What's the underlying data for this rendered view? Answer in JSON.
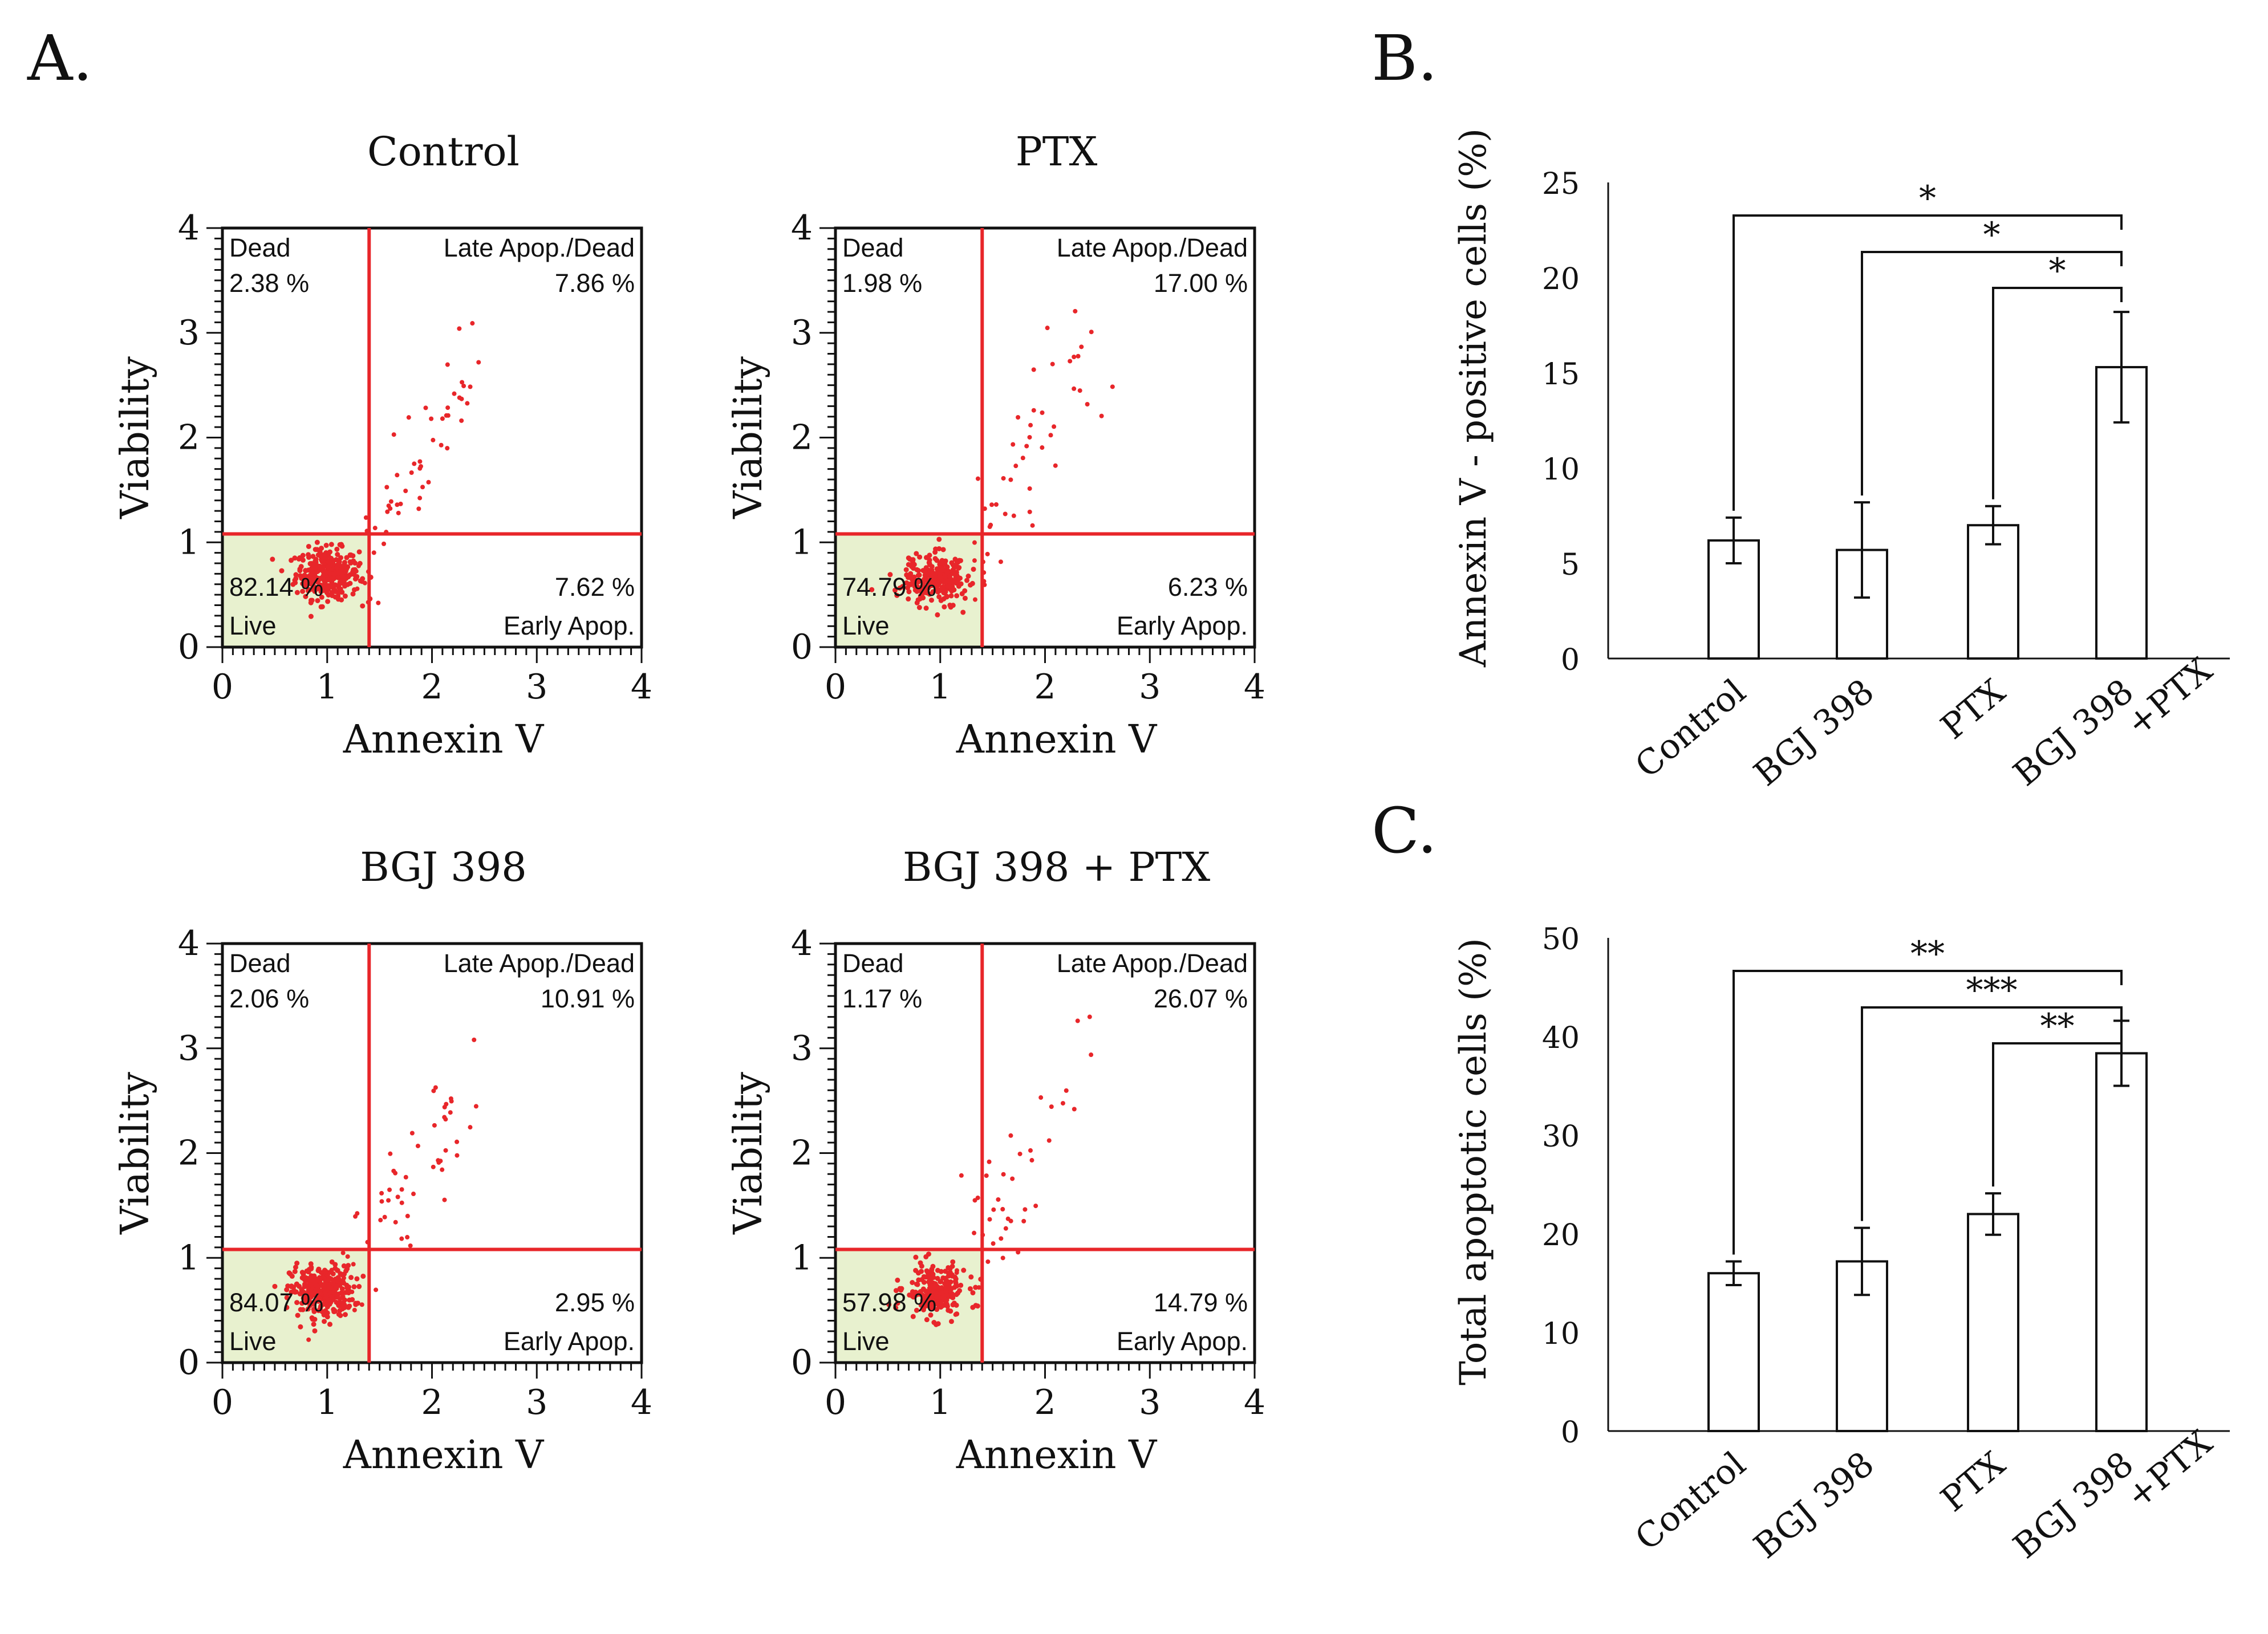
{
  "colors": {
    "red": "#e8262a",
    "live_fill": "#e8f1cf",
    "ink": "#111111",
    "dot": "#e8262a"
  },
  "panel_labels": {
    "a": "A.",
    "b": "B.",
    "c": "C."
  },
  "chart_data": [
    {
      "type": "scatter",
      "title": "Control",
      "xlabel": "Annexin V",
      "ylabel": "Viability",
      "xlim": [
        0,
        4
      ],
      "ylim": [
        0,
        4
      ],
      "xticks": [
        "0",
        "1",
        "2",
        "3",
        "4"
      ],
      "yticks": [
        "0",
        "1",
        "2",
        "3",
        "4"
      ],
      "gates": {
        "x": 1.4,
        "y": 1.08
      },
      "quadrants": {
        "dead": {
          "label": "Dead",
          "value": "2.38 %"
        },
        "late": {
          "label": "Late Apop./Dead",
          "value": "7.86 %"
        },
        "live": {
          "label": "Live",
          "value": "82.14 %"
        },
        "early": {
          "label": "Early Apop.",
          "value": "7.62 %"
        }
      },
      "population": {
        "live_center": [
          1.0,
          0.7
        ],
        "live_count": 320,
        "spread": [
          1.45,
          2.7
        ]
      }
    },
    {
      "type": "scatter",
      "title": "PTX",
      "xlabel": "Annexin V",
      "ylabel": "Viability",
      "xlim": [
        0,
        4
      ],
      "ylim": [
        0,
        4
      ],
      "xticks": [
        "0",
        "1",
        "2",
        "3",
        "4"
      ],
      "yticks": [
        "0",
        "1",
        "2",
        "3",
        "4"
      ],
      "gates": {
        "x": 1.4,
        "y": 1.08
      },
      "quadrants": {
        "dead": {
          "label": "Dead",
          "value": "1.98 %"
        },
        "late": {
          "label": "Late Apop./Dead",
          "value": "17.00 %"
        },
        "live": {
          "label": "Live",
          "value": "74.79 %"
        },
        "early": {
          "label": "Early Apop.",
          "value": "6.23 %"
        }
      },
      "population": {
        "live_center": [
          0.95,
          0.65
        ],
        "live_count": 280,
        "spread": [
          1.5,
          3.0
        ]
      }
    },
    {
      "type": "scatter",
      "title": "BGJ 398",
      "xlabel": "Annexin V",
      "ylabel": "Viability",
      "xlim": [
        0,
        4
      ],
      "ylim": [
        0,
        4
      ],
      "xticks": [
        "0",
        "1",
        "2",
        "3",
        "4"
      ],
      "yticks": [
        "0",
        "1",
        "2",
        "3",
        "4"
      ],
      "gates": {
        "x": 1.4,
        "y": 1.08
      },
      "quadrants": {
        "dead": {
          "label": "Dead",
          "value": "2.06 %"
        },
        "late": {
          "label": "Late Apop./Dead",
          "value": "10.91 %"
        },
        "live": {
          "label": "Live",
          "value": "84.07 %"
        },
        "early": {
          "label": "Early Apop.",
          "value": "2.95 %"
        }
      },
      "population": {
        "live_center": [
          0.95,
          0.68
        ],
        "live_count": 320,
        "spread": [
          1.4,
          2.9
        ]
      }
    },
    {
      "type": "scatter",
      "title": "BGJ 398 + PTX",
      "xlabel": "Annexin V",
      "ylabel": "Viability",
      "xlim": [
        0,
        4
      ],
      "ylim": [
        0,
        4
      ],
      "xticks": [
        "0",
        "1",
        "2",
        "3",
        "4"
      ],
      "yticks": [
        "0",
        "1",
        "2",
        "3",
        "4"
      ],
      "gates": {
        "x": 1.4,
        "y": 1.08
      },
      "quadrants": {
        "dead": {
          "label": "Dead",
          "value": "1.17 %"
        },
        "late": {
          "label": "Late Apop./Dead",
          "value": "26.07 %"
        },
        "live": {
          "label": "Live",
          "value": "57.98 %"
        },
        "early": {
          "label": "Early Apop.",
          "value": "14.79 %"
        }
      },
      "population": {
        "live_center": [
          0.95,
          0.68
        ],
        "live_count": 230,
        "spread": [
          1.5,
          3.1
        ]
      }
    },
    {
      "type": "bar",
      "panel": "B.",
      "ylabel": "Annexin V - positive cells (%)",
      "ylim": [
        0,
        25
      ],
      "yticks": [
        0,
        5,
        10,
        15,
        20,
        25
      ],
      "categories": [
        "Control",
        "BGJ 398",
        "PTX",
        "BGJ 398 +PTX"
      ],
      "category_lines": [
        [
          "Control"
        ],
        [
          "BGJ 398"
        ],
        [
          "PTX"
        ],
        [
          "BGJ 398",
          "+PTX"
        ]
      ],
      "values": [
        6.2,
        5.7,
        7.0,
        15.3
      ],
      "errors": [
        1.2,
        2.5,
        1.0,
        2.9
      ],
      "significance": [
        {
          "from": 0,
          "to": 3,
          "label": "*"
        },
        {
          "from": 1,
          "to": 3,
          "label": "*"
        },
        {
          "from": 2,
          "to": 3,
          "label": "*"
        }
      ]
    },
    {
      "type": "bar",
      "panel": "C.",
      "ylabel": "Total apoptotic cells (%)",
      "ylim": [
        0,
        50
      ],
      "yticks": [
        0,
        10,
        20,
        30,
        40,
        50
      ],
      "categories": [
        "Control",
        "BGJ 398",
        "PTX",
        "BGJ 398 +PTX"
      ],
      "category_lines": [
        [
          "Control"
        ],
        [
          "BGJ 398"
        ],
        [
          "PTX"
        ],
        [
          "BGJ 398",
          "+PTX"
        ]
      ],
      "values": [
        16.0,
        17.2,
        22.0,
        38.3
      ],
      "errors": [
        1.2,
        3.4,
        2.1,
        3.3
      ],
      "significance": [
        {
          "from": 0,
          "to": 3,
          "label": "**"
        },
        {
          "from": 1,
          "to": 3,
          "label": "***"
        },
        {
          "from": 2,
          "to": 3,
          "label": "**"
        }
      ]
    }
  ]
}
